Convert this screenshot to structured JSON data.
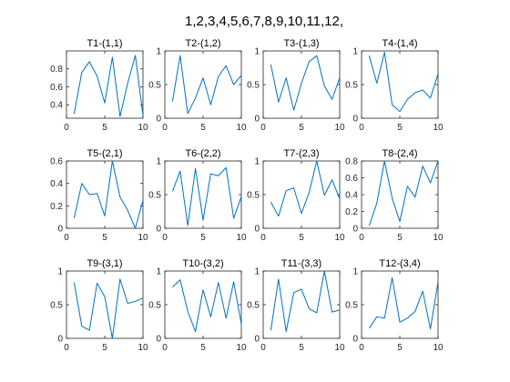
{
  "figure_title": "1,2,3,4,5,6,7,8,9,10,11,12,",
  "colors": {
    "line": "#0072BD",
    "axes": "#262626",
    "background": "#ffffff"
  },
  "chart_data": [
    {
      "type": "line",
      "title": "T1-(1,1)",
      "x": [
        1,
        2,
        3,
        4,
        5,
        6,
        7,
        8,
        9,
        10
      ],
      "values": [
        0.3,
        0.76,
        0.88,
        0.72,
        0.42,
        0.93,
        0.27,
        0.64,
        0.95,
        0.28
      ],
      "xlim": [
        0,
        10
      ],
      "ylim": [
        0.25,
        1.0
      ],
      "xticks": [
        "0",
        "5",
        "10"
      ],
      "yticks": [
        "0.4",
        "0.6",
        "0.8"
      ],
      "ytick_values": [
        0.4,
        0.6,
        0.8
      ],
      "grid": false
    },
    {
      "type": "line",
      "title": "T2-(1,2)",
      "x": [
        1,
        2,
        3,
        4,
        5,
        6,
        7,
        8,
        9,
        10
      ],
      "values": [
        0.25,
        0.93,
        0.07,
        0.3,
        0.6,
        0.2,
        0.62,
        0.78,
        0.5,
        0.64
      ],
      "xlim": [
        0,
        10
      ],
      "ylim": [
        0,
        1
      ],
      "xticks": [
        "0",
        "5",
        "10"
      ],
      "yticks": [
        "0",
        "0.5",
        "1"
      ],
      "ytick_values": [
        0,
        0.5,
        1
      ],
      "grid": false
    },
    {
      "type": "line",
      "title": "T3-(1,3)",
      "x": [
        1,
        2,
        3,
        4,
        5,
        6,
        7,
        8,
        9,
        10
      ],
      "values": [
        0.8,
        0.24,
        0.6,
        0.12,
        0.52,
        0.84,
        0.93,
        0.48,
        0.28,
        0.6
      ],
      "xlim": [
        0,
        10
      ],
      "ylim": [
        0,
        1
      ],
      "xticks": [
        "0",
        "5",
        "10"
      ],
      "yticks": [
        "0",
        "0.5",
        "1"
      ],
      "ytick_values": [
        0,
        0.5,
        1
      ],
      "grid": false
    },
    {
      "type": "line",
      "title": "T4-(1,4)",
      "x": [
        1,
        2,
        3,
        4,
        5,
        6,
        7,
        8,
        9,
        10
      ],
      "values": [
        0.93,
        0.52,
        0.98,
        0.2,
        0.1,
        0.28,
        0.38,
        0.42,
        0.3,
        0.66
      ],
      "xlim": [
        0,
        10
      ],
      "ylim": [
        0,
        1
      ],
      "xticks": [
        "0",
        "5",
        "10"
      ],
      "yticks": [
        "0",
        "0.5",
        "1"
      ],
      "ytick_values": [
        0,
        0.5,
        1
      ],
      "grid": false
    },
    {
      "type": "line",
      "title": "T5-(2,1)",
      "x": [
        1,
        2,
        3,
        4,
        5,
        6,
        7,
        8,
        9,
        10
      ],
      "values": [
        0.09,
        0.4,
        0.3,
        0.31,
        0.11,
        0.6,
        0.28,
        0.16,
        0.0,
        0.25
      ],
      "xlim": [
        0,
        10
      ],
      "ylim": [
        0,
        0.6
      ],
      "xticks": [
        "0",
        "5",
        "10"
      ],
      "yticks": [
        "0",
        "0.2",
        "0.4",
        "0.6"
      ],
      "ytick_values": [
        0,
        0.2,
        0.4,
        0.6
      ],
      "grid": false
    },
    {
      "type": "line",
      "title": "T6-(2,2)",
      "x": [
        1,
        2,
        3,
        4,
        5,
        6,
        7,
        8,
        9,
        10
      ],
      "values": [
        0.55,
        0.85,
        0.04,
        0.89,
        0.12,
        0.81,
        0.78,
        0.9,
        0.15,
        0.47
      ],
      "xlim": [
        0,
        10
      ],
      "ylim": [
        0,
        1
      ],
      "xticks": [
        "0",
        "5",
        "10"
      ],
      "yticks": [
        "0",
        "0.5",
        "1"
      ],
      "ytick_values": [
        0,
        0.5,
        1
      ],
      "grid": false
    },
    {
      "type": "line",
      "title": "T7-(2,3)",
      "x": [
        1,
        2,
        3,
        4,
        5,
        6,
        7,
        8,
        9,
        10
      ],
      "values": [
        0.39,
        0.18,
        0.56,
        0.6,
        0.22,
        0.53,
        1.0,
        0.49,
        0.72,
        0.44
      ],
      "xlim": [
        0,
        10
      ],
      "ylim": [
        0,
        1
      ],
      "xticks": [
        "0",
        "5",
        "10"
      ],
      "yticks": [
        "0",
        "0.5",
        "1"
      ],
      "ytick_values": [
        0,
        0.5,
        1
      ],
      "grid": false
    },
    {
      "type": "line",
      "title": "T8-(2,4)",
      "x": [
        1,
        2,
        3,
        4,
        5,
        6,
        7,
        8,
        9,
        10
      ],
      "values": [
        0.03,
        0.3,
        0.8,
        0.36,
        0.08,
        0.5,
        0.37,
        0.74,
        0.54,
        0.8
      ],
      "xlim": [
        0,
        10
      ],
      "ylim": [
        0,
        0.8
      ],
      "xticks": [
        "0",
        "5",
        "10"
      ],
      "yticks": [
        "0",
        "0.2",
        "0.4",
        "0.6",
        "0.8"
      ],
      "ytick_values": [
        0,
        0.2,
        0.4,
        0.6,
        0.8
      ],
      "grid": false
    },
    {
      "type": "line",
      "title": "T9-(3,1)",
      "x": [
        1,
        2,
        3,
        4,
        5,
        6,
        7,
        8,
        9,
        10
      ],
      "values": [
        0.83,
        0.18,
        0.12,
        0.82,
        0.62,
        0.0,
        0.88,
        0.52,
        0.55,
        0.6
      ],
      "xlim": [
        0,
        10
      ],
      "ylim": [
        0,
        1
      ],
      "xticks": [
        "0",
        "5",
        "10"
      ],
      "yticks": [
        "0",
        "0.5",
        "1"
      ],
      "ytick_values": [
        0,
        0.5,
        1
      ],
      "grid": false
    },
    {
      "type": "line",
      "title": "T10-(3,2)",
      "x": [
        1,
        2,
        3,
        4,
        5,
        6,
        7,
        8,
        9,
        10
      ],
      "values": [
        0.76,
        0.87,
        0.4,
        0.1,
        0.72,
        0.32,
        0.83,
        0.3,
        0.84,
        0.21
      ],
      "xlim": [
        0,
        10
      ],
      "ylim": [
        0,
        1
      ],
      "xticks": [
        "0",
        "5",
        "10"
      ],
      "yticks": [
        "0",
        "0.5",
        "1"
      ],
      "ytick_values": [
        0,
        0.5,
        1
      ],
      "grid": false
    },
    {
      "type": "line",
      "title": "T11-(3,3)",
      "x": [
        1,
        2,
        3,
        4,
        5,
        6,
        7,
        8,
        9,
        10
      ],
      "values": [
        0.12,
        0.88,
        0.1,
        0.68,
        0.73,
        0.44,
        0.38,
        1.0,
        0.39,
        0.42
      ],
      "xlim": [
        0,
        10
      ],
      "ylim": [
        0,
        1
      ],
      "xticks": [
        "0",
        "5",
        "10"
      ],
      "yticks": [
        "0",
        "0.5",
        "1"
      ],
      "ytick_values": [
        0,
        0.5,
        1
      ],
      "grid": false
    },
    {
      "type": "line",
      "title": "T12-(3,4)",
      "x": [
        1,
        2,
        3,
        4,
        5,
        6,
        7,
        8,
        9,
        10
      ],
      "values": [
        0.15,
        0.32,
        0.3,
        0.9,
        0.24,
        0.3,
        0.4,
        0.7,
        0.14,
        0.84
      ],
      "xlim": [
        0,
        10
      ],
      "ylim": [
        0,
        1
      ],
      "xticks": [
        "0",
        "5",
        "10"
      ],
      "yticks": [
        "0",
        "0.5",
        "1"
      ],
      "ytick_values": [
        0,
        0.5,
        1
      ],
      "grid": false
    }
  ]
}
